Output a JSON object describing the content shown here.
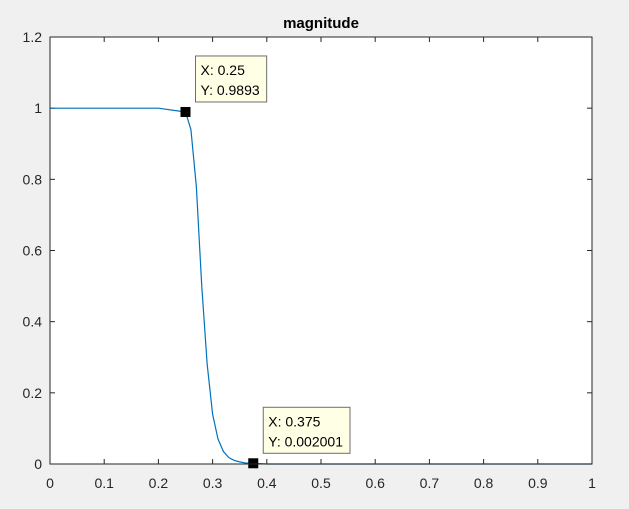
{
  "chart_data": {
    "type": "line",
    "title": "magnitude",
    "xlabel": "",
    "ylabel": "",
    "xlim": [
      0,
      1
    ],
    "ylim": [
      0,
      1.2
    ],
    "xticks": [
      "0",
      "0.1",
      "0.2",
      "0.3",
      "0.4",
      "0.5",
      "0.6",
      "0.7",
      "0.8",
      "0.9",
      "1"
    ],
    "yticks": [
      "0",
      "0.2",
      "0.4",
      "0.6",
      "0.8",
      "1",
      "1.2"
    ],
    "grid": false,
    "series": [
      {
        "color": "#0072bd",
        "x": [
          0,
          0.2,
          0.25,
          0.26,
          0.27,
          0.28,
          0.29,
          0.3,
          0.31,
          0.32,
          0.33,
          0.34,
          0.35,
          0.36,
          0.375,
          0.4,
          0.5,
          0.6,
          0.7,
          0.8,
          0.9,
          1.0
        ],
        "y": [
          1,
          1,
          0.9893,
          0.94,
          0.78,
          0.5,
          0.28,
          0.14,
          0.07,
          0.035,
          0.018,
          0.01,
          0.006,
          0.003,
          0.002001,
          0,
          0,
          0,
          0,
          0,
          0,
          0
        ]
      }
    ],
    "datatips": [
      {
        "x": 0.25,
        "y": 0.9893,
        "label_x": "X: 0.25",
        "label_y": "Y: 0.9893",
        "placement": "above-right"
      },
      {
        "x": 0.375,
        "y": 0.002001,
        "label_x": "X: 0.375",
        "label_y": "Y: 0.002001",
        "placement": "above-right"
      }
    ]
  }
}
